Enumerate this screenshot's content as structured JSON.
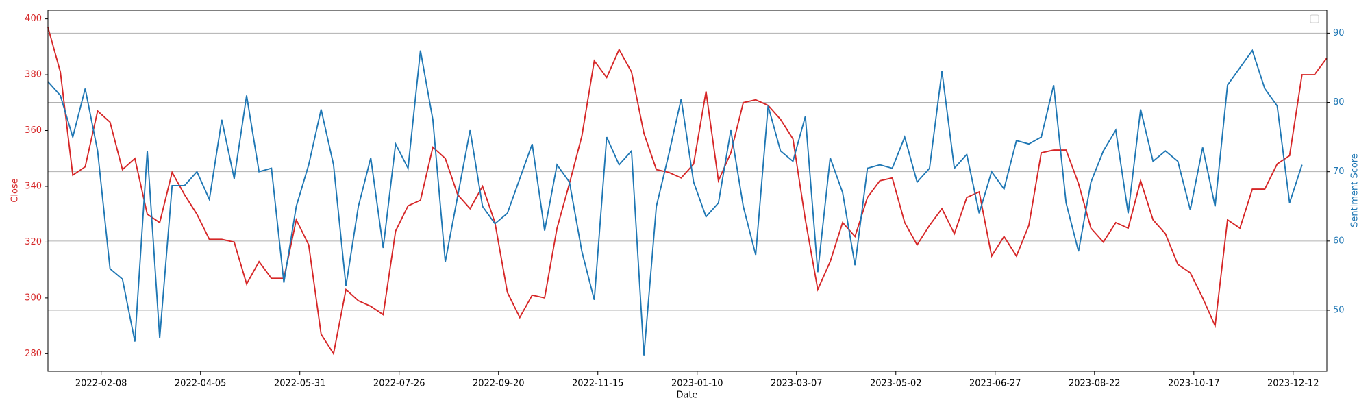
{
  "chart_data": {
    "type": "line",
    "x_label": "Date",
    "y_label": "Close",
    "y2_label": "Sentiment Score",
    "x": [
      "2022-01-09",
      "2022-01-16",
      "2022-01-23",
      "2022-01-30",
      "2022-02-06",
      "2022-02-13",
      "2022-02-20",
      "2022-02-27",
      "2022-03-06",
      "2022-03-13",
      "2022-03-20",
      "2022-03-27",
      "2022-04-03",
      "2022-04-10",
      "2022-04-17",
      "2022-04-24",
      "2022-05-01",
      "2022-05-08",
      "2022-05-15",
      "2022-05-22",
      "2022-05-29",
      "2022-06-05",
      "2022-06-12",
      "2022-06-19",
      "2022-06-26",
      "2022-07-03",
      "2022-07-10",
      "2022-07-17",
      "2022-07-24",
      "2022-07-31",
      "2022-08-07",
      "2022-08-14",
      "2022-08-21",
      "2022-08-28",
      "2022-09-04",
      "2022-09-11",
      "2022-09-18",
      "2022-09-25",
      "2022-10-02",
      "2022-10-09",
      "2022-10-16",
      "2022-10-23",
      "2022-10-30",
      "2022-11-06",
      "2022-11-13",
      "2022-11-20",
      "2022-11-27",
      "2022-12-04",
      "2022-12-11",
      "2022-12-18",
      "2022-12-25",
      "2023-01-01",
      "2023-01-08",
      "2023-01-15",
      "2023-01-22",
      "2023-01-29",
      "2023-02-05",
      "2023-02-12",
      "2023-02-19",
      "2023-02-26",
      "2023-03-05",
      "2023-03-12",
      "2023-03-19",
      "2023-03-26",
      "2023-04-02",
      "2023-04-09",
      "2023-04-16",
      "2023-04-23",
      "2023-04-30",
      "2023-05-07",
      "2023-05-14",
      "2023-05-21",
      "2023-05-28",
      "2023-06-04",
      "2023-06-11",
      "2023-06-18",
      "2023-06-25",
      "2023-07-02",
      "2023-07-09",
      "2023-07-16",
      "2023-07-23",
      "2023-07-30",
      "2023-08-06",
      "2023-08-13",
      "2023-08-20",
      "2023-08-27",
      "2023-09-03",
      "2023-09-10",
      "2023-09-17",
      "2023-09-24",
      "2023-10-01",
      "2023-10-08",
      "2023-10-15",
      "2023-10-22",
      "2023-10-29",
      "2023-11-05",
      "2023-11-12",
      "2023-11-19",
      "2023-11-26",
      "2023-12-03",
      "2023-12-10",
      "2023-12-17",
      "2023-12-24",
      "2023-12-31"
    ],
    "series": [
      {
        "color": "#d62728",
        "axis": "y",
        "values": [
          397,
          381,
          344,
          347,
          367,
          363,
          346,
          350,
          330,
          327,
          345,
          337,
          330,
          321,
          321,
          320,
          305,
          313,
          307,
          307,
          328,
          319,
          287,
          280,
          303,
          299,
          297,
          294,
          324,
          333,
          335,
          354,
          350,
          337,
          332,
          340,
          327,
          302,
          293,
          301,
          300,
          325,
          341,
          358,
          385,
          379,
          389,
          381,
          359,
          346,
          345,
          343,
          348,
          374,
          342,
          352,
          370,
          371,
          369,
          364,
          357,
          328,
          303,
          313,
          327,
          322,
          336,
          342,
          343,
          327,
          319,
          326,
          332,
          323,
          336,
          338,
          315,
          322,
          315,
          326,
          352,
          353,
          353,
          341,
          325,
          320,
          327,
          325,
          342,
          328,
          323,
          312,
          309,
          300,
          290,
          328,
          325,
          339,
          339,
          348,
          351,
          380,
          380,
          386
        ]
      },
      {
        "color": "#1f77b4",
        "axis": "y2",
        "values": [
          83,
          81,
          75,
          82,
          73,
          56,
          54.5,
          45.5,
          73,
          46,
          68,
          68,
          70,
          66,
          77.5,
          69,
          81,
          70,
          70.5,
          54,
          65,
          71,
          79,
          71,
          53.5,
          65,
          72,
          59,
          74,
          70.5,
          87.5,
          77.5,
          57,
          66.5,
          76,
          65,
          62.5,
          64,
          69,
          74,
          61.5,
          71,
          68.5,
          58.5,
          51.5,
          75,
          71,
          73,
          43.5,
          65,
          72.5,
          80.5,
          68.5,
          63.5,
          65.5,
          76,
          65,
          58,
          79.5,
          73,
          71.5,
          78,
          55.5,
          72,
          67,
          56.5,
          70.5,
          71,
          70.5,
          75,
          68.5,
          70.5,
          84.5,
          70.5,
          72.5,
          64,
          70,
          67.5,
          74.5,
          74,
          75,
          82.5,
          65.5,
          58.5,
          68.5,
          73,
          76,
          64,
          79,
          71.5,
          73,
          71.5,
          64.5,
          73.5,
          65,
          82.5,
          85,
          87.5,
          82,
          79.5,
          65.5,
          71,
          null,
          null
        ]
      }
    ],
    "xlim": [
      "2022-01-09",
      "2023-12-31"
    ],
    "xticks": [
      "2022-02-08",
      "2022-04-05",
      "2022-05-31",
      "2022-07-26",
      "2022-09-20",
      "2022-11-15",
      "2023-01-10",
      "2023-03-07",
      "2023-05-02",
      "2023-06-27",
      "2023-08-22",
      "2023-10-17",
      "2023-12-12"
    ],
    "ylim": [
      273.7,
      403.1
    ],
    "yticks": [
      280,
      300,
      320,
      340,
      360,
      380,
      400
    ],
    "y_color": "#d62728",
    "y2lim": [
      41.2,
      93.3
    ],
    "y2ticks": [
      50,
      60,
      70,
      80,
      90
    ],
    "y2_color": "#1f77b4",
    "grid": "y2",
    "legend": "upper right"
  }
}
